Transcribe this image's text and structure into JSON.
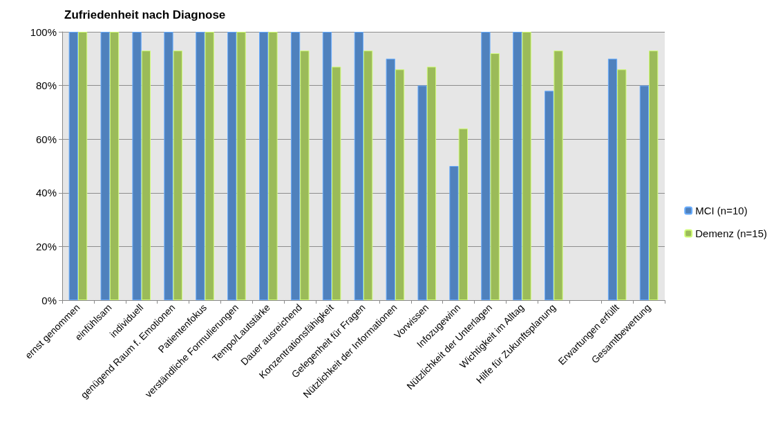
{
  "chart_data": {
    "type": "bar",
    "title": "Zufriedenheit nach Diagnose",
    "categories": [
      "ernst genommen",
      "einfühlsam",
      "individuell",
      "genügend Raum f. Emotionen",
      "Patientenfokus",
      "verständliche Formulierungen",
      "Tempo/Lautstärke",
      "Dauer ausreichend",
      "Konzentrationsfähigkeit",
      "Gelegenheit für Fragen",
      "Nützlichkeit der Informationen",
      "Vorwissen",
      "Infozugewinn",
      "Nützlichkeit der Unterlagen",
      "Wichtigkeit im Alltag",
      "Hilfe für Zukunftsplanung",
      null,
      "Erwartungen erfüllt",
      "Gesamtbewertung"
    ],
    "series": [
      {
        "name": "MCI (n=10)",
        "color": "#4f81bd",
        "values": [
          100,
          100,
          100,
          100,
          100,
          100,
          100,
          100,
          100,
          100,
          90,
          80,
          50,
          100,
          100,
          78,
          null,
          90,
          80
        ]
      },
      {
        "name": "Demenz (n=15)",
        "color": "#9bbb59",
        "values": [
          100,
          100,
          93,
          93,
          100,
          100,
          100,
          93,
          87,
          93,
          86,
          87,
          64,
          92,
          100,
          93,
          null,
          86,
          93
        ]
      }
    ],
    "ylim": [
      0,
      100
    ],
    "yticks": [
      {
        "value": 0,
        "label": "0%"
      },
      {
        "value": 20,
        "label": "20%"
      },
      {
        "value": 40,
        "label": "40%"
      },
      {
        "value": 60,
        "label": "60%"
      },
      {
        "value": 80,
        "label": "80%"
      },
      {
        "value": 100,
        "label": "100%"
      }
    ],
    "grid": "y",
    "legend": "right"
  }
}
